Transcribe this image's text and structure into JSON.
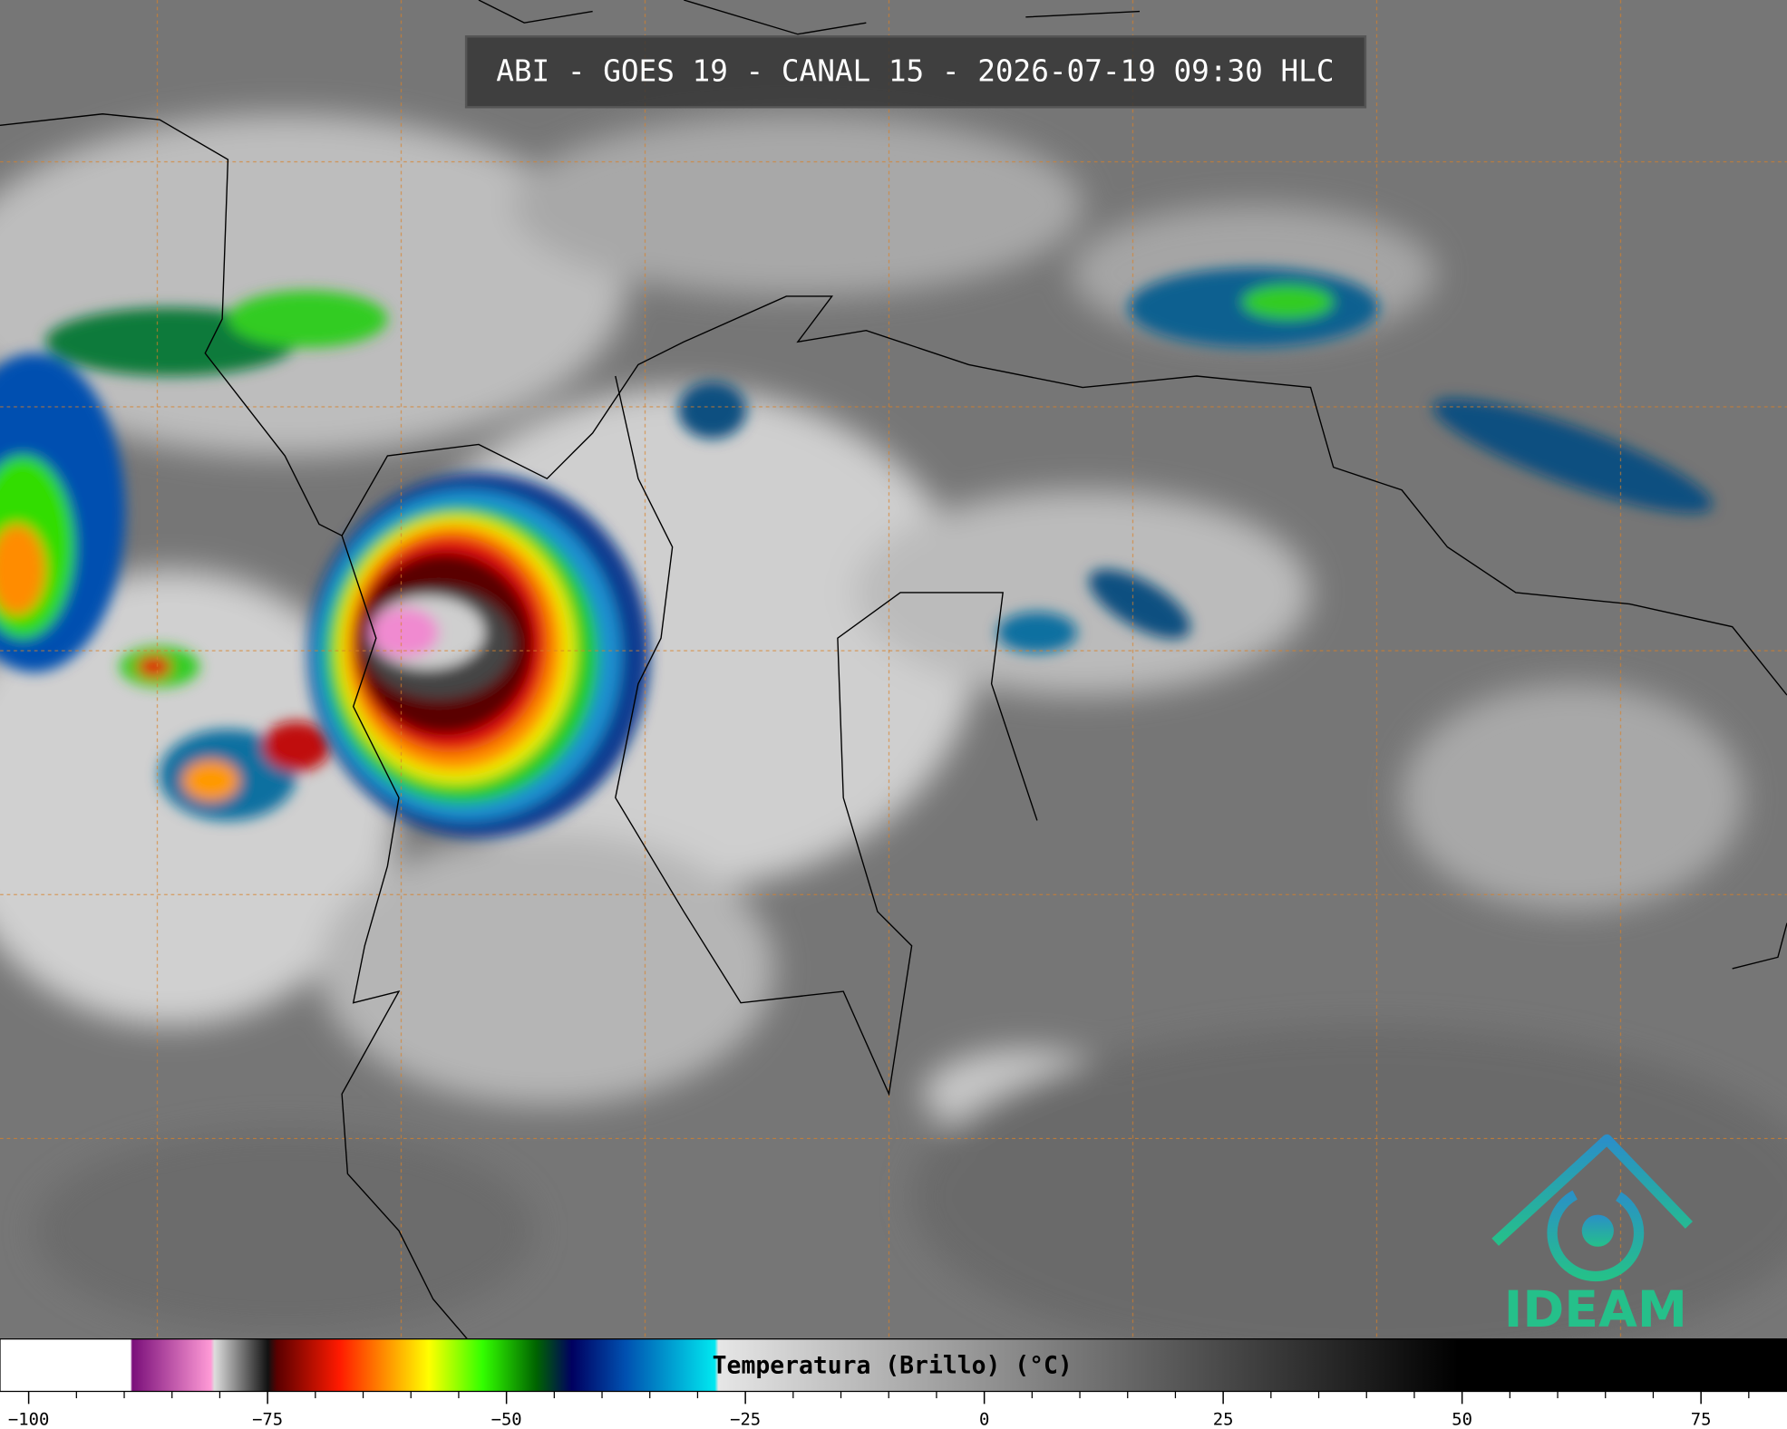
{
  "header": {
    "title": "ABI - GOES 19 - CANAL 15 - 2026-07-19 09:30 HLC"
  },
  "colorbar": {
    "label": "Temperatura (Brillo) (°C)",
    "lim": [
      -103,
      84
    ],
    "ticks": [
      {
        "value": -100,
        "label": "−100"
      },
      {
        "value": -75,
        "label": "−75"
      },
      {
        "value": -50,
        "label": "−50"
      },
      {
        "value": -25,
        "label": "−25"
      },
      0,
      25,
      50,
      75
    ],
    "minor_ticks": [
      -95,
      -90,
      -85,
      -80,
      -70,
      -65,
      -60,
      -55,
      -45,
      -40,
      -35,
      -30,
      -20,
      -15,
      -10,
      -5,
      5,
      10,
      15,
      20,
      30,
      35,
      40,
      45,
      55,
      60,
      65,
      70,
      80
    ]
  },
  "logo": {
    "text": "IDEAM"
  }
}
